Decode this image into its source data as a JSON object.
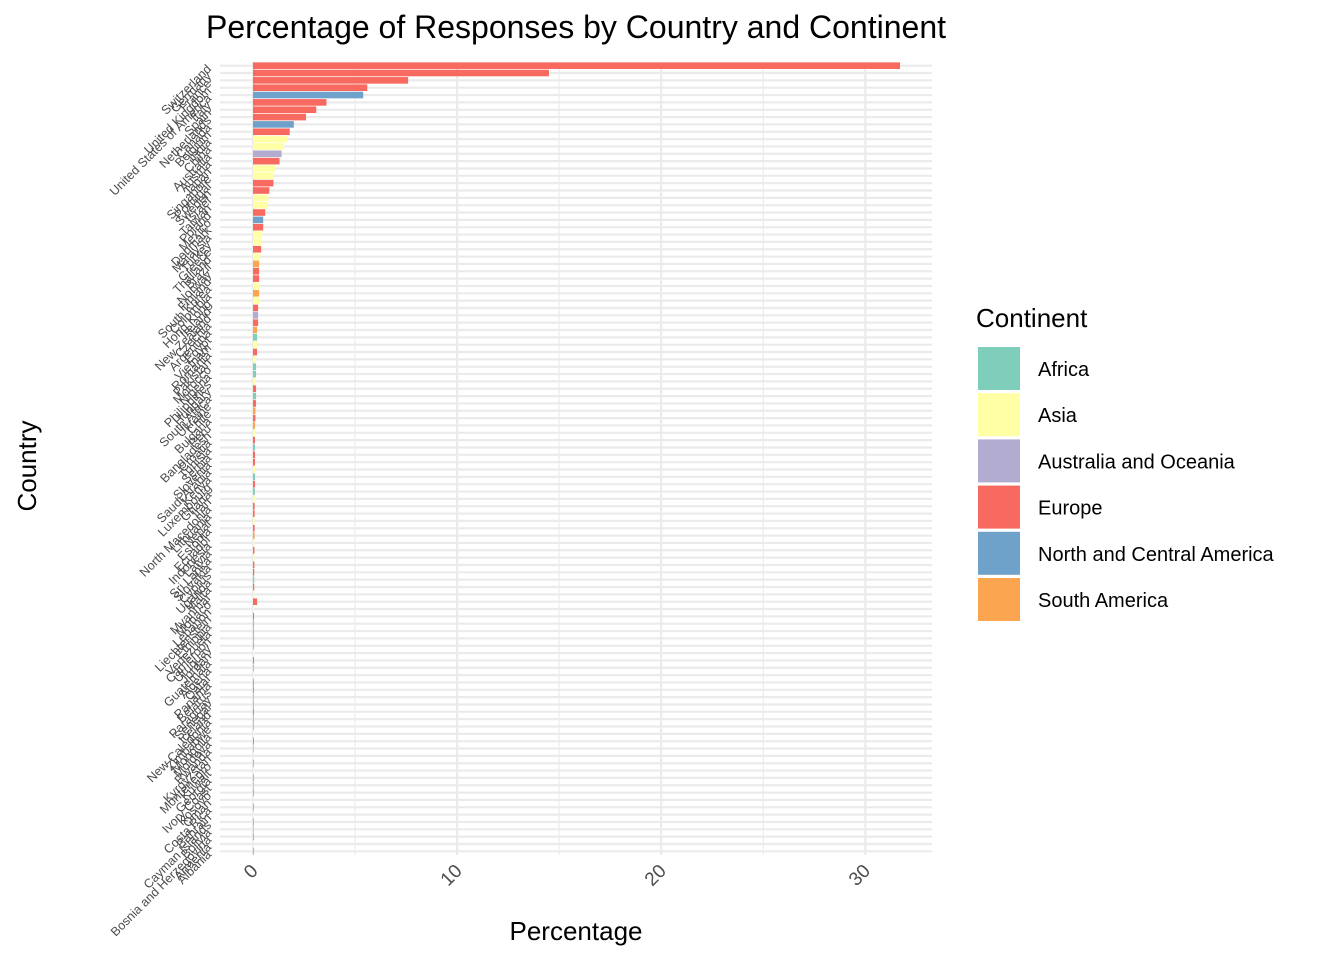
{
  "chart_data": {
    "type": "bar",
    "orientation": "horizontal",
    "title": "Percentage of Responses by Country and Continent",
    "xlabel": "Percentage",
    "ylabel": "Country",
    "xlim": [
      0,
      33.2
    ],
    "x_ticks": [
      0,
      10,
      20,
      30
    ],
    "legend_title": "Continent",
    "legend_position": "right",
    "grid": true,
    "continents": [
      {
        "name": "Africa",
        "color": "#7FCDBB"
      },
      {
        "name": "Asia",
        "color": "#FFFFA6"
      },
      {
        "name": "Australia and Oceania",
        "color": "#B3ACD1"
      },
      {
        "name": "Europe",
        "color": "#F8695F"
      },
      {
        "name": "North and Central America",
        "color": "#6FA2CB"
      },
      {
        "name": "South America",
        "color": "#FCA550"
      }
    ],
    "bars": [
      {
        "country": "Switzerland",
        "value": 31.7,
        "continent": "Europe"
      },
      {
        "country": "Germany",
        "value": 14.5,
        "continent": "Europe"
      },
      {
        "country": "France",
        "value": 7.6,
        "continent": "Europe"
      },
      {
        "country": "United Kingdom",
        "value": 5.6,
        "continent": "Europe"
      },
      {
        "country": "United States of America",
        "value": 5.4,
        "continent": "North and Central America"
      },
      {
        "country": "Italy",
        "value": 3.6,
        "continent": "Europe"
      },
      {
        "country": "Spain",
        "value": 3.1,
        "continent": "Europe"
      },
      {
        "country": "Netherlands",
        "value": 2.6,
        "continent": "Europe"
      },
      {
        "country": "Canada",
        "value": 2.0,
        "continent": "North and Central America"
      },
      {
        "country": "Belgium",
        "value": 1.8,
        "continent": "Europe"
      },
      {
        "country": "India",
        "value": 1.7,
        "continent": "Asia"
      },
      {
        "country": "China",
        "value": 1.5,
        "continent": "Asia"
      },
      {
        "country": "Australia",
        "value": 1.4,
        "continent": "Australia and Oceania"
      },
      {
        "country": "Austria",
        "value": 1.3,
        "continent": "Europe"
      },
      {
        "country": "Japan",
        "value": 1.1,
        "continent": "Asia"
      },
      {
        "country": "Singapore",
        "value": 1.0,
        "continent": "Asia"
      },
      {
        "country": "Portugal",
        "value": 1.0,
        "continent": "Europe"
      },
      {
        "country": "Sweden",
        "value": 0.8,
        "continent": "Europe"
      },
      {
        "country": "Israel",
        "value": 0.75,
        "continent": "Asia"
      },
      {
        "country": "Taiwan",
        "value": 0.7,
        "continent": "Asia"
      },
      {
        "country": "Poland",
        "value": 0.6,
        "continent": "Europe"
      },
      {
        "country": "Mexico",
        "value": 0.5,
        "continent": "North and Central America"
      },
      {
        "country": "Denmark",
        "value": 0.5,
        "continent": "Europe"
      },
      {
        "country": "Malaysia",
        "value": 0.45,
        "continent": "Asia"
      },
      {
        "country": "Turkey",
        "value": 0.4,
        "continent": "Asia"
      },
      {
        "country": "Greece",
        "value": 0.4,
        "continent": "Europe"
      },
      {
        "country": "Thailand",
        "value": 0.35,
        "continent": "Asia"
      },
      {
        "country": "Brazil",
        "value": 0.3,
        "continent": "South America"
      },
      {
        "country": "Norway",
        "value": 0.3,
        "continent": "Europe"
      },
      {
        "country": "Finland",
        "value": 0.3,
        "continent": "Europe"
      },
      {
        "country": "South Korea",
        "value": 0.3,
        "continent": "Asia"
      },
      {
        "country": "Colombia",
        "value": 0.3,
        "continent": "South America"
      },
      {
        "country": "Hong Kong",
        "value": 0.3,
        "continent": "Asia"
      },
      {
        "country": "Ireland",
        "value": 0.25,
        "continent": "Europe"
      },
      {
        "country": "New Zealand",
        "value": 0.25,
        "continent": "Australia and Oceania"
      },
      {
        "country": "Czechia",
        "value": 0.25,
        "continent": "Europe"
      },
      {
        "country": "Argentina",
        "value": 0.2,
        "continent": "South America"
      },
      {
        "country": "Egypt",
        "value": 0.2,
        "continent": "Africa"
      },
      {
        "country": "Vietnam",
        "value": 0.2,
        "continent": "Asia"
      },
      {
        "country": "Romania",
        "value": 0.2,
        "continent": "Europe"
      },
      {
        "country": "Pakistan",
        "value": 0.15,
        "continent": "Asia"
      },
      {
        "country": "Morocco",
        "value": 0.15,
        "continent": "Africa"
      },
      {
        "country": "Nigeria",
        "value": 0.15,
        "continent": "Africa"
      },
      {
        "country": "Philippines",
        "value": 0.12,
        "continent": "Asia"
      },
      {
        "country": "Hungary",
        "value": 0.15,
        "continent": "Europe"
      },
      {
        "country": "South Africa",
        "value": 0.15,
        "continent": "Africa"
      },
      {
        "country": "Ukraine",
        "value": 0.15,
        "continent": "Europe"
      },
      {
        "country": "Chile",
        "value": 0.12,
        "continent": "South America"
      },
      {
        "country": "Bulgaria",
        "value": 0.12,
        "continent": "Europe"
      },
      {
        "country": "Peru",
        "value": 0.1,
        "continent": "South America"
      },
      {
        "country": "Bangladesh",
        "value": 0.1,
        "continent": "Asia"
      },
      {
        "country": "Croatia",
        "value": 0.1,
        "continent": "Europe"
      },
      {
        "country": "Tunisia",
        "value": 0.1,
        "continent": "Africa"
      },
      {
        "country": "Serbia",
        "value": 0.1,
        "continent": "Europe"
      },
      {
        "country": "Slovenia",
        "value": 0.1,
        "continent": "Europe"
      },
      {
        "country": "Saudi Arabia",
        "value": 0.1,
        "continent": "Asia"
      },
      {
        "country": "Kenya",
        "value": 0.1,
        "continent": "Africa"
      },
      {
        "country": "Luxembourg",
        "value": 0.1,
        "continent": "Europe"
      },
      {
        "country": "Ghana",
        "value": 0.09,
        "continent": "Africa"
      },
      {
        "country": "Iran",
        "value": 0.09,
        "continent": "Asia"
      },
      {
        "country": "North Macedonia",
        "value": 0.08,
        "continent": "Europe"
      },
      {
        "country": "Lithuania",
        "value": 0.08,
        "continent": "Europe"
      },
      {
        "country": "Nepal",
        "value": 0.08,
        "continent": "Asia"
      },
      {
        "country": "Estonia",
        "value": 0.08,
        "continent": "Europe"
      },
      {
        "country": "Ecuador",
        "value": 0.08,
        "continent": "South America"
      },
      {
        "country": "Indonesia",
        "value": 0.07,
        "continent": "Asia"
      },
      {
        "country": "Latvia",
        "value": 0.07,
        "continent": "Europe"
      },
      {
        "country": "Sri Lanka",
        "value": 0.07,
        "continent": "Asia"
      },
      {
        "country": "Slovakia",
        "value": 0.07,
        "continent": "Europe"
      },
      {
        "country": "Cyprus",
        "value": 0.06,
        "continent": "Europe"
      },
      {
        "country": "Uganda",
        "value": 0.06,
        "continent": "Africa"
      },
      {
        "country": "Malta",
        "value": 0.06,
        "continent": "Europe"
      },
      {
        "country": "Myanmar",
        "value": 0.06,
        "continent": "Asia"
      },
      {
        "country": "Monaco",
        "value": 0.2,
        "continent": "Europe"
      },
      {
        "country": "Lebanon",
        "value": 0.05,
        "continent": "Asia"
      },
      {
        "country": "Liechtenstein",
        "value": 0.05,
        "continent": "Europe"
      },
      {
        "country": "Ethiopia",
        "value": 0.05,
        "continent": "Africa"
      },
      {
        "country": "Venezuela",
        "value": 0.05,
        "continent": "South America"
      },
      {
        "country": "Cameroon",
        "value": 0.05,
        "continent": "Africa"
      },
      {
        "country": "Uruguay",
        "value": 0.05,
        "continent": "South America"
      },
      {
        "country": "Jordan",
        "value": 0.05,
        "continent": "Asia"
      },
      {
        "country": "Guatemala",
        "value": 0.05,
        "continent": "North and Central America"
      },
      {
        "country": "Algeria",
        "value": 0.04,
        "continent": "Africa"
      },
      {
        "country": "Qatar",
        "value": 0.04,
        "continent": "Asia"
      },
      {
        "country": "Panama",
        "value": 0.04,
        "continent": "North and Central America"
      },
      {
        "country": "Belarus",
        "value": 0.04,
        "continent": "Europe"
      },
      {
        "country": "Paraguay",
        "value": 0.04,
        "continent": "South America"
      },
      {
        "country": "Senegal",
        "value": 0.04,
        "continent": "Africa"
      },
      {
        "country": "Iceland",
        "value": 0.04,
        "continent": "Europe"
      },
      {
        "country": "New Caledonia",
        "value": 0.04,
        "continent": "Australia and Oceania"
      },
      {
        "country": "Zimbabwe",
        "value": 0.04,
        "continent": "Africa"
      },
      {
        "country": "Mongolia",
        "value": 0.04,
        "continent": "Asia"
      },
      {
        "country": "Moldova",
        "value": 0.04,
        "continent": "Europe"
      },
      {
        "country": "Rwanda",
        "value": 0.03,
        "continent": "Africa"
      },
      {
        "country": "Kyrgyzstan",
        "value": 0.03,
        "continent": "Asia"
      },
      {
        "country": "Montenegro",
        "value": 0.03,
        "continent": "Europe"
      },
      {
        "country": "Kuwait",
        "value": 0.03,
        "continent": "Asia"
      },
      {
        "country": "Georgia",
        "value": 0.03,
        "continent": "Europe"
      },
      {
        "country": "Ivory Coast",
        "value": 0.03,
        "continent": "Africa"
      },
      {
        "country": "Kosovo",
        "value": 0.03,
        "continent": "Europe"
      },
      {
        "country": "Oman",
        "value": 0.03,
        "continent": "Asia"
      },
      {
        "country": "Costa Rica",
        "value": 0.03,
        "continent": "North and Central America"
      },
      {
        "country": "Bahrain",
        "value": 0.03,
        "continent": "Asia"
      },
      {
        "country": "Cayman Islands",
        "value": 0.03,
        "continent": "North and Central America"
      },
      {
        "country": "Bolivia",
        "value": 0.03,
        "continent": "South America"
      },
      {
        "country": "Bosnia and Herzegovina",
        "value": 0.03,
        "continent": "Europe"
      },
      {
        "country": "Armenia",
        "value": 0.02,
        "continent": "Asia"
      },
      {
        "country": "Albania",
        "value": 0.02,
        "continent": "Europe"
      }
    ]
  }
}
